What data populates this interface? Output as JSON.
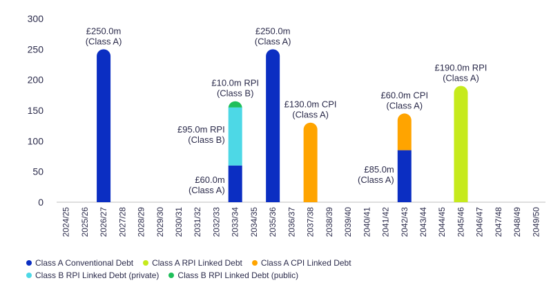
{
  "chart_data": {
    "type": "bar",
    "stacked": true,
    "ylim": [
      0,
      300
    ],
    "yticks": [
      0,
      50,
      100,
      150,
      200,
      250,
      300
    ],
    "categories": [
      "2024/25",
      "2025/26",
      "2026/27",
      "2027/28",
      "2028/29",
      "2029/30",
      "2030/31",
      "2031/32",
      "2032/33",
      "2033/34",
      "2034/35",
      "2035/36",
      "2036/37",
      "2037/38",
      "2038/39",
      "2039/40",
      "2040/41",
      "2041/42",
      "2042/43",
      "2043/44",
      "2044/45",
      "2045/46",
      "2046/47",
      "2047/48",
      "2048/49",
      "2049/50"
    ],
    "series": [
      {
        "name": "Class A Conventional Debt",
        "color": "#0b2ec2",
        "values": [
          0,
          0,
          250,
          0,
          0,
          0,
          0,
          0,
          0,
          60,
          0,
          250,
          0,
          0,
          0,
          0,
          0,
          0,
          85,
          0,
          0,
          0,
          0,
          0,
          0,
          0
        ]
      },
      {
        "name": "Class B RPI Linked Debt (private)",
        "color": "#4dd8e6",
        "values": [
          0,
          0,
          0,
          0,
          0,
          0,
          0,
          0,
          0,
          95,
          0,
          0,
          0,
          0,
          0,
          0,
          0,
          0,
          0,
          0,
          0,
          0,
          0,
          0,
          0,
          0
        ]
      },
      {
        "name": "Class B RPI Linked Debt (public)",
        "color": "#1fbf5a",
        "values": [
          0,
          0,
          0,
          0,
          0,
          0,
          0,
          0,
          0,
          10,
          0,
          0,
          0,
          0,
          0,
          0,
          0,
          0,
          0,
          0,
          0,
          0,
          0,
          0,
          0,
          0
        ]
      },
      {
        "name": "Class A CPI Linked Debt",
        "color": "#ffa400",
        "values": [
          0,
          0,
          0,
          0,
          0,
          0,
          0,
          0,
          0,
          0,
          0,
          0,
          0,
          130,
          0,
          0,
          0,
          0,
          60,
          0,
          0,
          0,
          0,
          0,
          0,
          0
        ]
      },
      {
        "name": "Class A RPI Linked Debt",
        "color": "#c6ea1c",
        "values": [
          0,
          0,
          0,
          0,
          0,
          0,
          0,
          0,
          0,
          0,
          0,
          0,
          0,
          0,
          0,
          0,
          0,
          0,
          0,
          0,
          0,
          190,
          0,
          0,
          0,
          0
        ]
      }
    ],
    "annotations": [
      {
        "lines": [
          "£250.0m",
          "(Class A)"
        ],
        "category": "2026/27",
        "value": 250,
        "pos": "above"
      },
      {
        "lines": [
          "£250.0m",
          "(Class A)"
        ],
        "category": "2035/36",
        "value": 250,
        "pos": "above"
      },
      {
        "lines": [
          "£10.0m RPI",
          "(Class B)"
        ],
        "category": "2033/34",
        "value": 165,
        "pos": "above"
      },
      {
        "lines": [
          "£95.0m RPI",
          "(Class B)"
        ],
        "category": "2033/34",
        "value": 107,
        "pos": "left"
      },
      {
        "lines": [
          "£60.0m",
          "(Class A)"
        ],
        "category": "2033/34",
        "value": 25,
        "pos": "left"
      },
      {
        "lines": [
          "£130.0m CPI",
          "(Class A)"
        ],
        "category": "2037/38",
        "value": 130,
        "pos": "above"
      },
      {
        "lines": [
          "£60.0m CPI",
          "(Class A)"
        ],
        "category": "2042/43",
        "value": 145,
        "pos": "above"
      },
      {
        "lines": [
          "£85.0m",
          "(Class A)"
        ],
        "category": "2042/43",
        "value": 42,
        "pos": "left"
      },
      {
        "lines": [
          "£190.0m RPI",
          "(Class A)"
        ],
        "category": "2045/46",
        "value": 190,
        "pos": "above"
      }
    ],
    "legend_rows": [
      [
        "Class A Conventional Debt",
        "Class A RPI Linked Debt",
        "Class A CPI Linked Debt"
      ],
      [
        "Class B RPI Linked Debt (private)",
        "Class B RPI Linked Debt (public)"
      ]
    ]
  }
}
